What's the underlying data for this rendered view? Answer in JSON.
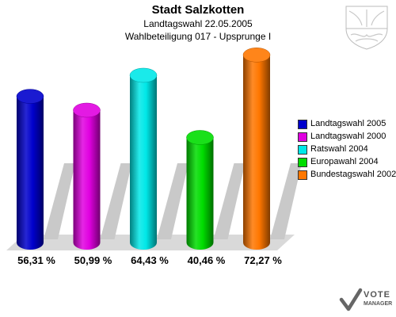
{
  "chart_data": {
    "type": "bar",
    "title": "Stadt Salzkotten",
    "subtitle_lines": [
      "Landtagswahl 22.05.2005",
      "Wahlbeteiligung 017 - Upsprunge I"
    ],
    "categories": [
      "Landtagswahl 2005",
      "Landtagswahl 2000",
      "Ratswahl 2004",
      "Europawahl 2004",
      "Bundestagswahl 2002"
    ],
    "values": [
      56.31,
      50.99,
      64.43,
      40.46,
      72.27
    ],
    "value_labels": [
      "56,31 %",
      "50,99 %",
      "64,43 %",
      "40,46 %",
      "72,27 %"
    ],
    "colors": [
      "#0000cc",
      "#e000e0",
      "#00e8e8",
      "#00dd00",
      "#ff7700"
    ],
    "xlabel": "",
    "ylabel": "",
    "ylim": [
      0,
      80
    ],
    "legend_position": "right",
    "grid": false
  },
  "branding": {
    "logo_line1": "VOTE",
    "logo_line2": "MANAGER"
  },
  "icons": [
    "crest-icon",
    "vote-manager-logo-icon"
  ]
}
